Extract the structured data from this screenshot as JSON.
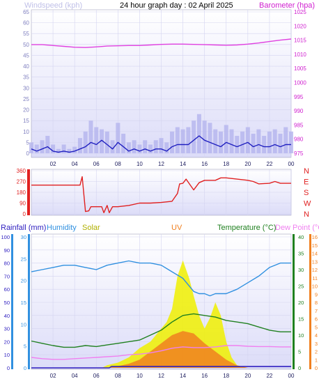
{
  "header": {
    "left": "Windspeed (kph)",
    "title": "24 hour graph day : 02 April 2025",
    "right": "Barometer (hpa)"
  },
  "panel3_labels": {
    "rain": "Rainfall (mm)",
    "humidity": "Humidity",
    "solar": "Solar",
    "uv": "UV",
    "temperature": "Temperature (°C)",
    "dewpoint": "Dew Point (°C)"
  },
  "colors": {
    "wind_avg": "#2020c0",
    "wind_gust": "#b4b4ee",
    "barometer": "#e040e0",
    "direction": "#e02020",
    "humidity": "#3090e0",
    "temperature": "#208020",
    "dewpoint": "#f080f0",
    "solar": "#f0f000",
    "uv": "#f08020",
    "rain": "#3020c0",
    "panel_bg_top": "#ffffff",
    "panel_bg_bottom": "#dcdcf8"
  },
  "chart_data": [
    {
      "type": "line",
      "title": "24 hour graph day : 02 April 2025",
      "x_ticks": [
        "02",
        "04",
        "06",
        "08",
        "10",
        "12",
        "14",
        "16",
        "18",
        "20",
        "22",
        "00"
      ],
      "ylabel": "Windspeed (kph)",
      "ylim": [
        0,
        65
      ],
      "yticks": [
        "0",
        "5",
        "10",
        "15",
        "20",
        "25",
        "30",
        "35",
        "40",
        "45",
        "50",
        "55",
        "60",
        "65"
      ],
      "y2label": "Barometer (hpa)",
      "y2lim": [
        975,
        1025
      ],
      "y2ticks": [
        "975",
        "980",
        "985",
        "990",
        "995",
        "1000",
        "1005",
        "1010",
        "1015",
        "1020",
        "1025"
      ],
      "series": [
        {
          "name": "Windspeed (kph)",
          "x": [
            0,
            0.5,
            1,
            1.5,
            2,
            2.5,
            3,
            3.5,
            4,
            4.5,
            5,
            5.5,
            6,
            6.5,
            7,
            7.5,
            8,
            8.5,
            9,
            9.5,
            10,
            10.5,
            11,
            11.5,
            12,
            12.5,
            13,
            13.5,
            14,
            14.5,
            15,
            15.5,
            16,
            16.5,
            17,
            17.5,
            18,
            18.5,
            19,
            19.5,
            20,
            20.5,
            21,
            21.5,
            22,
            22.5,
            23,
            23.5,
            24
          ],
          "values": [
            2,
            1,
            2,
            3,
            1,
            0.5,
            1,
            0.5,
            1,
            2,
            3,
            5,
            4,
            6,
            4,
            2,
            5,
            3,
            1,
            2,
            1,
            2,
            1,
            2,
            2,
            1,
            3,
            4,
            4,
            4,
            6,
            8,
            6,
            5,
            4,
            3,
            5,
            4,
            3,
            4,
            5,
            3,
            4,
            3,
            3,
            4,
            3,
            4,
            4
          ]
        },
        {
          "name": "Wind gust",
          "x": [
            0,
            0.5,
            1,
            1.5,
            2,
            2.5,
            3,
            3.5,
            4,
            4.5,
            5,
            5.5,
            6,
            6.5,
            7,
            7.5,
            8,
            8.5,
            9,
            9.5,
            10,
            10.5,
            11,
            11.5,
            12,
            12.5,
            13,
            13.5,
            14,
            14.5,
            15,
            15.5,
            16,
            16.5,
            17,
            17.5,
            18,
            18.5,
            19,
            19.5,
            20,
            20.5,
            21,
            21.5,
            22,
            22.5,
            23,
            23.5,
            24
          ],
          "values": [
            5,
            4,
            6,
            8,
            4,
            2,
            4,
            2,
            3,
            7,
            10,
            15,
            12,
            11,
            10,
            6,
            14,
            9,
            5,
            6,
            4,
            6,
            4,
            6,
            7,
            5,
            10,
            12,
            11,
            12,
            15,
            18,
            15,
            14,
            11,
            10,
            13,
            11,
            8,
            10,
            12,
            9,
            11,
            8,
            10,
            11,
            9,
            12,
            10
          ]
        },
        {
          "name": "Barometer (hpa)",
          "x": [
            0,
            1,
            2,
            3,
            4,
            5,
            6,
            7,
            8,
            9,
            10,
            11,
            12,
            13,
            14,
            15,
            16,
            17,
            18,
            19,
            20,
            21,
            22,
            23,
            24
          ],
          "values": [
            1013.4,
            1013.4,
            1013.1,
            1012.8,
            1012.5,
            1012.4,
            1012.6,
            1012.9,
            1013.0,
            1013.1,
            1013.1,
            1013.3,
            1013.5,
            1013.6,
            1013.6,
            1013.5,
            1013.4,
            1013.3,
            1013.2,
            1013.3,
            1013.6,
            1014.0,
            1014.5,
            1015.0,
            1015.4
          ]
        }
      ]
    },
    {
      "type": "line",
      "title": "",
      "x_ticks": [
        "02",
        "04",
        "06",
        "08",
        "10",
        "12",
        "14",
        "16",
        "18",
        "20",
        "22",
        "00"
      ],
      "ylim": [
        0,
        360
      ],
      "yticks": [
        "0",
        "90",
        "180",
        "270",
        "360"
      ],
      "y2ticks": [
        "N",
        "W",
        "S",
        "E",
        "N"
      ],
      "series": [
        {
          "name": "Wind direction",
          "x": [
            0,
            4.5,
            4.7,
            5,
            5.3,
            5.5,
            6,
            6.5,
            6.7,
            7,
            7.2,
            7.5,
            8,
            8.5,
            9,
            10,
            11,
            12,
            13,
            13.5,
            13.7,
            14,
            14.3,
            14.6,
            15,
            15.5,
            16,
            17,
            17.5,
            18,
            19,
            20,
            20.5,
            21,
            22,
            22.5,
            23,
            24
          ],
          "values": [
            240,
            240,
            310,
            20,
            25,
            60,
            60,
            60,
            10,
            70,
            10,
            60,
            60,
            65,
            70,
            90,
            90,
            95,
            105,
            170,
            250,
            255,
            290,
            250,
            200,
            260,
            280,
            280,
            300,
            300,
            290,
            280,
            270,
            250,
            255,
            270,
            255,
            255
          ]
        }
      ]
    },
    {
      "type": "line",
      "title": "",
      "x_ticks": [
        "02",
        "04",
        "06",
        "08",
        "10",
        "12",
        "14",
        "16",
        "18",
        "20",
        "22",
        "00"
      ],
      "yticks_rain": [
        "0",
        "10",
        "20",
        "30",
        "40",
        "50",
        "60",
        "70",
        "80",
        "90",
        "100"
      ],
      "yticks_humidity": [
        "0",
        "5",
        "10",
        "15",
        "20",
        "25",
        "30"
      ],
      "yticks_temperature": [
        "0",
        "5",
        "10",
        "15",
        "20",
        "25",
        "30",
        "35",
        "40"
      ],
      "yticks_uv": [
        "0",
        "1",
        "2",
        "3",
        "4",
        "5",
        "6",
        "7",
        "8",
        "9",
        "10",
        "11",
        "12",
        "13",
        "14",
        "15",
        "16"
      ],
      "series": [
        {
          "name": "Humidity",
          "x": [
            0,
            1,
            2,
            3,
            4,
            5,
            6,
            7,
            8,
            9,
            10,
            11,
            12,
            13,
            14,
            15,
            15.5,
            16,
            16.5,
            17,
            18,
            19,
            20,
            21,
            22,
            23,
            24
          ],
          "values": [
            22,
            22.5,
            23,
            23.5,
            23.5,
            23,
            22.5,
            23.5,
            24,
            24.5,
            24,
            24,
            23.5,
            22,
            20.5,
            17.5,
            17,
            17,
            16.5,
            17,
            17,
            18,
            19.5,
            21,
            23,
            24,
            24
          ]
        },
        {
          "name": "Temperature (°C)",
          "x": [
            0,
            1,
            2,
            3,
            4,
            5,
            6,
            7,
            8,
            9,
            10,
            11,
            12,
            13,
            14,
            15,
            16,
            17,
            18,
            19,
            20,
            21,
            22,
            23,
            24
          ],
          "values": [
            8.2,
            7.5,
            6.8,
            6.3,
            6.3,
            6.8,
            6.5,
            7,
            7.5,
            8,
            8.5,
            10,
            11.5,
            14,
            16,
            16.5,
            16,
            15.5,
            14.5,
            14,
            13.5,
            12.5,
            11.5,
            11,
            11
          ]
        },
        {
          "name": "Dew Point (°C)",
          "x": [
            0,
            1,
            2,
            3,
            4,
            5,
            6,
            7,
            8,
            9,
            10,
            11,
            12,
            13,
            14,
            15,
            16,
            17,
            18,
            19,
            20,
            21,
            22,
            23,
            24
          ],
          "values": [
            3.2,
            2.8,
            2.6,
            2.6,
            2.8,
            3,
            3.2,
            3.4,
            3.6,
            4,
            4.2,
            4.6,
            5.2,
            6,
            6.4,
            6.2,
            6.2,
            6.4,
            6.8,
            6.8,
            6.6,
            6.5,
            6.5,
            6.4,
            6.4
          ]
        },
        {
          "name": "Solar",
          "x": [
            0,
            6.5,
            7,
            8,
            9,
            10,
            11,
            12,
            12.5,
            13,
            13.5,
            14,
            14.3,
            14.6,
            15,
            15.5,
            16,
            16.5,
            17,
            17.5,
            18,
            18.5,
            19,
            20,
            24
          ],
          "values": [
            0,
            0,
            2,
            4,
            8,
            15,
            20,
            30,
            35,
            45,
            70,
            82,
            75,
            68,
            55,
            40,
            30,
            38,
            50,
            40,
            20,
            8,
            2,
            0,
            0
          ]
        },
        {
          "name": "UV",
          "x": [
            0,
            7,
            8,
            9,
            10,
            11,
            12,
            13,
            14,
            15,
            16,
            17,
            18,
            19,
            20,
            24
          ],
          "values": [
            0,
            0,
            0.2,
            0.5,
            1,
            2,
            3,
            4,
            4.5,
            4.2,
            3,
            2,
            1,
            0.3,
            0,
            0
          ]
        },
        {
          "name": "Rainfall (mm)",
          "x": [
            0,
            7.2,
            7.4,
            12,
            14,
            18,
            20,
            20.5,
            24
          ],
          "values": [
            0,
            0,
            1,
            1,
            1,
            1,
            1,
            1,
            1
          ]
        }
      ]
    }
  ]
}
